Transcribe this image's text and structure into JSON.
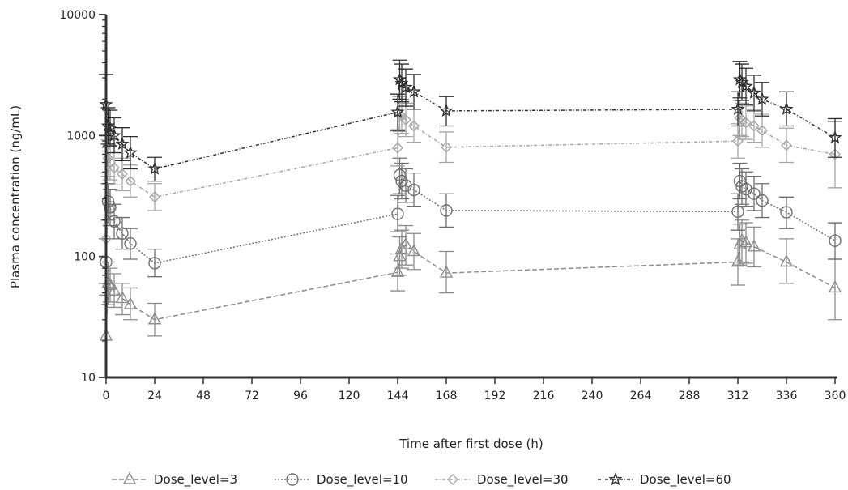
{
  "chart_data": {
    "type": "line",
    "xlabel": "Time after first dose (h)",
    "ylabel": "Plasma concentration (ng/mL)",
    "xlim": [
      0,
      360
    ],
    "ylim": [
      10,
      10000
    ],
    "yscale": "log",
    "x_ticks": [
      0,
      24,
      48,
      72,
      96,
      120,
      144,
      168,
      192,
      216,
      240,
      264,
      288,
      312,
      336,
      360
    ],
    "y_ticks": [
      {
        "value": 10,
        "label": "10"
      },
      {
        "value": 100,
        "label": "100"
      },
      {
        "value": 1000,
        "label": "1000"
      },
      {
        "value": 10000,
        "label": "10000"
      }
    ],
    "grid": false,
    "legend_position": "bottom",
    "series": [
      {
        "name": "Dose_level=3",
        "color": "#8c8c8c",
        "line_dash": "6,3",
        "marker": "triangle",
        "points": [
          {
            "x": 0,
            "y": 22,
            "lo": 10,
            "hi": 48
          },
          {
            "x": 1,
            "y": 60,
            "lo": 40,
            "hi": 90
          },
          {
            "x": 2,
            "y": 58,
            "lo": 42,
            "hi": 80
          },
          {
            "x": 4,
            "y": 52,
            "lo": 38,
            "hi": 72
          },
          {
            "x": 8,
            "y": 45,
            "lo": 33,
            "hi": 60
          },
          {
            "x": 12,
            "y": 40,
            "lo": 30,
            "hi": 55
          },
          {
            "x": 24,
            "y": 30,
            "lo": 22,
            "hi": 41
          },
          {
            "x": 144,
            "y": 74,
            "lo": 52,
            "hi": 105
          },
          {
            "x": 145,
            "y": 100,
            "lo": 70,
            "hi": 145
          },
          {
            "x": 146,
            "y": 115,
            "lo": 80,
            "hi": 165
          },
          {
            "x": 148,
            "y": 125,
            "lo": 85,
            "hi": 180
          },
          {
            "x": 152,
            "y": 110,
            "lo": 78,
            "hi": 155
          },
          {
            "x": 168,
            "y": 73,
            "lo": 50,
            "hi": 110
          },
          {
            "x": 312,
            "y": 90,
            "lo": 58,
            "hi": 140
          },
          {
            "x": 313,
            "y": 125,
            "lo": 85,
            "hi": 185
          },
          {
            "x": 314,
            "y": 135,
            "lo": 90,
            "hi": 200
          },
          {
            "x": 316,
            "y": 130,
            "lo": 88,
            "hi": 190
          },
          {
            "x": 320,
            "y": 120,
            "lo": 82,
            "hi": 175
          },
          {
            "x": 336,
            "y": 90,
            "lo": 60,
            "hi": 140
          },
          {
            "x": 360,
            "y": 55,
            "lo": 30,
            "hi": 95
          }
        ]
      },
      {
        "name": "Dose_level=10",
        "color": "#6e6e6e",
        "line_dash": "2,2",
        "marker": "circle",
        "points": [
          {
            "x": 0,
            "y": 90,
            "lo": 60,
            "hi": 140
          },
          {
            "x": 1,
            "y": 285,
            "lo": 200,
            "hi": 400
          },
          {
            "x": 2,
            "y": 255,
            "lo": 180,
            "hi": 360
          },
          {
            "x": 4,
            "y": 195,
            "lo": 140,
            "hi": 270
          },
          {
            "x": 8,
            "y": 155,
            "lo": 115,
            "hi": 210
          },
          {
            "x": 12,
            "y": 128,
            "lo": 95,
            "hi": 170
          },
          {
            "x": 24,
            "y": 88,
            "lo": 68,
            "hi": 115
          },
          {
            "x": 144,
            "y": 225,
            "lo": 160,
            "hi": 320
          },
          {
            "x": 145,
            "y": 470,
            "lo": 330,
            "hi": 650
          },
          {
            "x": 146,
            "y": 420,
            "lo": 300,
            "hi": 590
          },
          {
            "x": 148,
            "y": 385,
            "lo": 280,
            "hi": 530
          },
          {
            "x": 152,
            "y": 355,
            "lo": 260,
            "hi": 490
          },
          {
            "x": 168,
            "y": 240,
            "lo": 175,
            "hi": 330
          },
          {
            "x": 312,
            "y": 235,
            "lo": 165,
            "hi": 330
          },
          {
            "x": 313,
            "y": 420,
            "lo": 300,
            "hi": 590
          },
          {
            "x": 314,
            "y": 380,
            "lo": 270,
            "hi": 530
          },
          {
            "x": 316,
            "y": 360,
            "lo": 260,
            "hi": 500
          },
          {
            "x": 320,
            "y": 330,
            "lo": 240,
            "hi": 460
          },
          {
            "x": 324,
            "y": 290,
            "lo": 210,
            "hi": 400
          },
          {
            "x": 336,
            "y": 232,
            "lo": 170,
            "hi": 310
          },
          {
            "x": 360,
            "y": 135,
            "lo": 95,
            "hi": 190
          }
        ]
      },
      {
        "name": "Dose_level=30",
        "color": "#a6a6a6",
        "line_dash": "4,2,1,2",
        "marker": "diamond",
        "points": [
          {
            "x": 0,
            "y": 140,
            "lo": 90,
            "hi": 220
          },
          {
            "x": 1,
            "y": 650,
            "lo": 460,
            "hi": 920
          },
          {
            "x": 2,
            "y": 600,
            "lo": 430,
            "hi": 830
          },
          {
            "x": 4,
            "y": 540,
            "lo": 390,
            "hi": 740
          },
          {
            "x": 8,
            "y": 480,
            "lo": 350,
            "hi": 650
          },
          {
            "x": 12,
            "y": 420,
            "lo": 310,
            "hi": 570
          },
          {
            "x": 24,
            "y": 310,
            "lo": 240,
            "hi": 400
          },
          {
            "x": 144,
            "y": 790,
            "lo": 560,
            "hi": 1120
          },
          {
            "x": 145,
            "y": 1500,
            "lo": 1080,
            "hi": 2100
          },
          {
            "x": 146,
            "y": 1450,
            "lo": 1040,
            "hi": 2000
          },
          {
            "x": 148,
            "y": 1350,
            "lo": 980,
            "hi": 1850
          },
          {
            "x": 152,
            "y": 1200,
            "lo": 880,
            "hi": 1650
          },
          {
            "x": 168,
            "y": 800,
            "lo": 600,
            "hi": 1070
          },
          {
            "x": 312,
            "y": 900,
            "lo": 650,
            "hi": 1250
          },
          {
            "x": 313,
            "y": 1400,
            "lo": 1000,
            "hi": 1950
          },
          {
            "x": 314,
            "y": 1350,
            "lo": 980,
            "hi": 1850
          },
          {
            "x": 316,
            "y": 1280,
            "lo": 930,
            "hi": 1760
          },
          {
            "x": 320,
            "y": 1200,
            "lo": 880,
            "hi": 1640
          },
          {
            "x": 324,
            "y": 1100,
            "lo": 800,
            "hi": 1500
          },
          {
            "x": 336,
            "y": 830,
            "lo": 600,
            "hi": 1150
          },
          {
            "x": 360,
            "y": 700,
            "lo": 370,
            "hi": 1300
          }
        ]
      },
      {
        "name": "Dose_level=60",
        "color": "#2f2f2f",
        "line_dash": "4,2,1,2",
        "marker": "star",
        "points": [
          {
            "x": 0,
            "y": 1800,
            "lo": 1000,
            "hi": 3200
          },
          {
            "x": 1,
            "y": 1200,
            "lo": 850,
            "hi": 1700
          },
          {
            "x": 2,
            "y": 1150,
            "lo": 820,
            "hi": 1620
          },
          {
            "x": 4,
            "y": 1000,
            "lo": 720,
            "hi": 1400
          },
          {
            "x": 8,
            "y": 850,
            "lo": 620,
            "hi": 1160
          },
          {
            "x": 12,
            "y": 720,
            "lo": 530,
            "hi": 980
          },
          {
            "x": 24,
            "y": 530,
            "lo": 420,
            "hi": 660
          },
          {
            "x": 144,
            "y": 1560,
            "lo": 1100,
            "hi": 2200
          },
          {
            "x": 145,
            "y": 2900,
            "lo": 2000,
            "hi": 4200
          },
          {
            "x": 146,
            "y": 2700,
            "lo": 1900,
            "hi": 3900
          },
          {
            "x": 148,
            "y": 2500,
            "lo": 1750,
            "hi": 3550
          },
          {
            "x": 152,
            "y": 2300,
            "lo": 1650,
            "hi": 3200
          },
          {
            "x": 168,
            "y": 1600,
            "lo": 1200,
            "hi": 2100
          },
          {
            "x": 312,
            "y": 1650,
            "lo": 1200,
            "hi": 2300
          },
          {
            "x": 313,
            "y": 2900,
            "lo": 2050,
            "hi": 4100
          },
          {
            "x": 314,
            "y": 2750,
            "lo": 1950,
            "hi": 3900
          },
          {
            "x": 316,
            "y": 2550,
            "lo": 1800,
            "hi": 3600
          },
          {
            "x": 320,
            "y": 2250,
            "lo": 1600,
            "hi": 3150
          },
          {
            "x": 324,
            "y": 2000,
            "lo": 1450,
            "hi": 2750
          },
          {
            "x": 336,
            "y": 1650,
            "lo": 1200,
            "hi": 2300
          },
          {
            "x": 360,
            "y": 960,
            "lo": 660,
            "hi": 1380
          }
        ]
      }
    ]
  }
}
